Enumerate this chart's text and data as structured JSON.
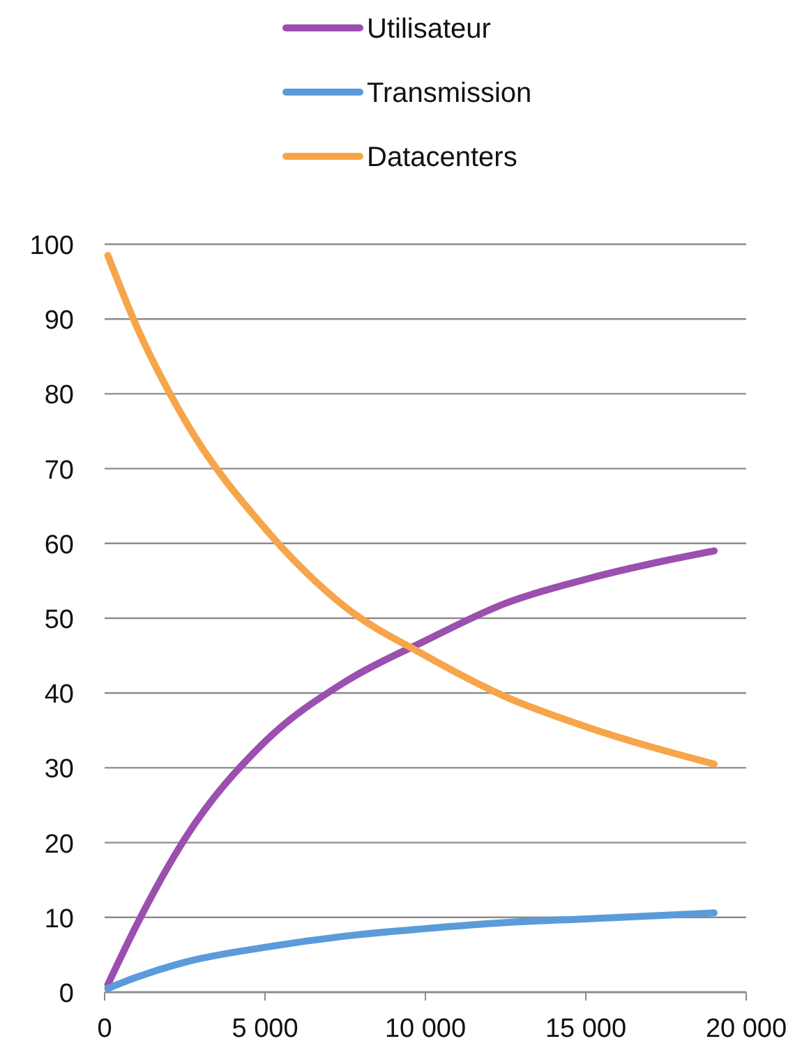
{
  "chart_data": {
    "type": "line",
    "x": [
      100,
      1000,
      2500,
      5000,
      7500,
      10000,
      12500,
      15000,
      19000
    ],
    "series": [
      {
        "name": "Utilisateur",
        "color": "#9b4fae",
        "values": [
          1,
          9,
          20.5,
          33.5,
          41.5,
          47,
          52,
          55.2,
          59
        ]
      },
      {
        "name": "Transmission",
        "color": "#5b9bd9",
        "values": [
          0.5,
          2,
          4,
          6,
          7.5,
          8.5,
          9.3,
          9.8,
          10.6
        ]
      },
      {
        "name": "Datacenters",
        "color": "#f6a54a",
        "values": [
          98.5,
          89,
          76.5,
          62,
          51.5,
          45,
          39.5,
          35.5,
          30.5
        ]
      }
    ],
    "xlim": [
      0,
      20000
    ],
    "xticks": [
      0,
      {
        "value": 5000,
        "label": "5 000"
      },
      {
        "value": 10000,
        "label": "10 000"
      },
      {
        "value": 15000,
        "label": "15 000"
      },
      {
        "value": 20000,
        "label": "20 000"
      }
    ],
    "ylim": [
      0,
      100
    ],
    "yticks": [
      0,
      10,
      20,
      30,
      40,
      50,
      60,
      70,
      80,
      90,
      100
    ],
    "grid": "y",
    "legend": "top",
    "marker": "none",
    "line_style": "solid"
  }
}
